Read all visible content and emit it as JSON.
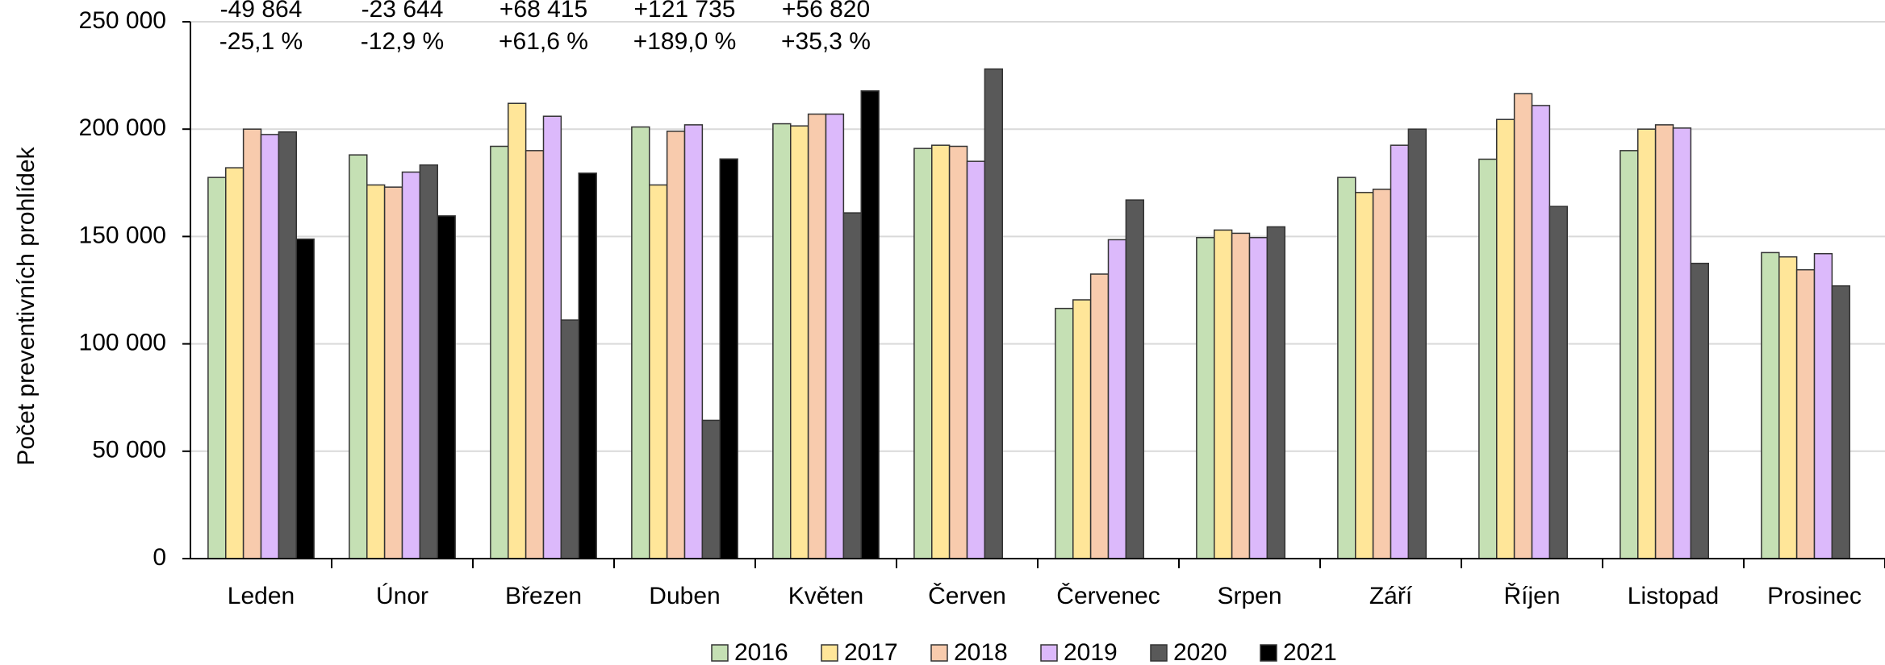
{
  "chart_data": {
    "type": "bar",
    "y_label": "Počet preventivních prohlídek",
    "categories": [
      "Leden",
      "Únor",
      "Březen",
      "Duben",
      "Květen",
      "Červen",
      "Červenec",
      "Srpen",
      "Září",
      "Říjen",
      "Listopad",
      "Prosinec"
    ],
    "series": [
      {
        "name": "2016",
        "color": "#c5e0b4",
        "values": [
          177500,
          188000,
          192000,
          201000,
          202500,
          191000,
          116500,
          149500,
          177500,
          186000,
          190000,
          142500
        ]
      },
      {
        "name": "2017",
        "color": "#ffe699",
        "values": [
          182000,
          174000,
          212000,
          174000,
          201500,
          192500,
          120500,
          153000,
          170500,
          204500,
          200000,
          140500
        ]
      },
      {
        "name": "2018",
        "color": "#f8cbad",
        "values": [
          200000,
          173000,
          190000,
          199000,
          207000,
          192000,
          132500,
          151500,
          172000,
          216500,
          202000,
          134500
        ]
      },
      {
        "name": "2019",
        "color": "#dcb9fb",
        "values": [
          197500,
          180000,
          206000,
          202000,
          207000,
          185000,
          148500,
          149500,
          192500,
          211000,
          200500,
          142000
        ]
      },
      {
        "name": "2020",
        "color": "#595959",
        "values": [
          198700,
          183300,
          111100,
          64400,
          161000,
          228000,
          167000,
          154500,
          200000,
          164000,
          137500,
          127000
        ]
      },
      {
        "name": "2021",
        "color": "#000000",
        "values": [
          148800,
          159600,
          179500,
          186100,
          217800,
          null,
          null,
          null,
          null,
          null,
          null,
          null
        ]
      }
    ],
    "annotations": [
      {
        "change": "-49 864",
        "percent": "-25,1 %",
        "color": "#c00000"
      },
      {
        "change": "-23 644",
        "percent": "-12,9 %",
        "color": "#c00000"
      },
      {
        "change": "+68 415",
        "percent": "+61,6 %",
        "color": "#000000"
      },
      {
        "change": "+121 735",
        "percent": "+189,0 %",
        "color": "#000000"
      },
      {
        "change": "+56 820",
        "percent": "+35,3 %",
        "color": "#000000"
      }
    ],
    "ylim": [
      0,
      250000
    ],
    "yticks": [
      0,
      {
        "value": 50000,
        "label": "50 000"
      },
      {
        "value": 100000,
        "label": "100 000"
      },
      {
        "value": 150000,
        "label": "150 000"
      },
      {
        "value": 200000,
        "label": "200 000"
      },
      {
        "value": 250000,
        "label": "250 000"
      }
    ],
    "grid": true,
    "legend": "bottom"
  }
}
